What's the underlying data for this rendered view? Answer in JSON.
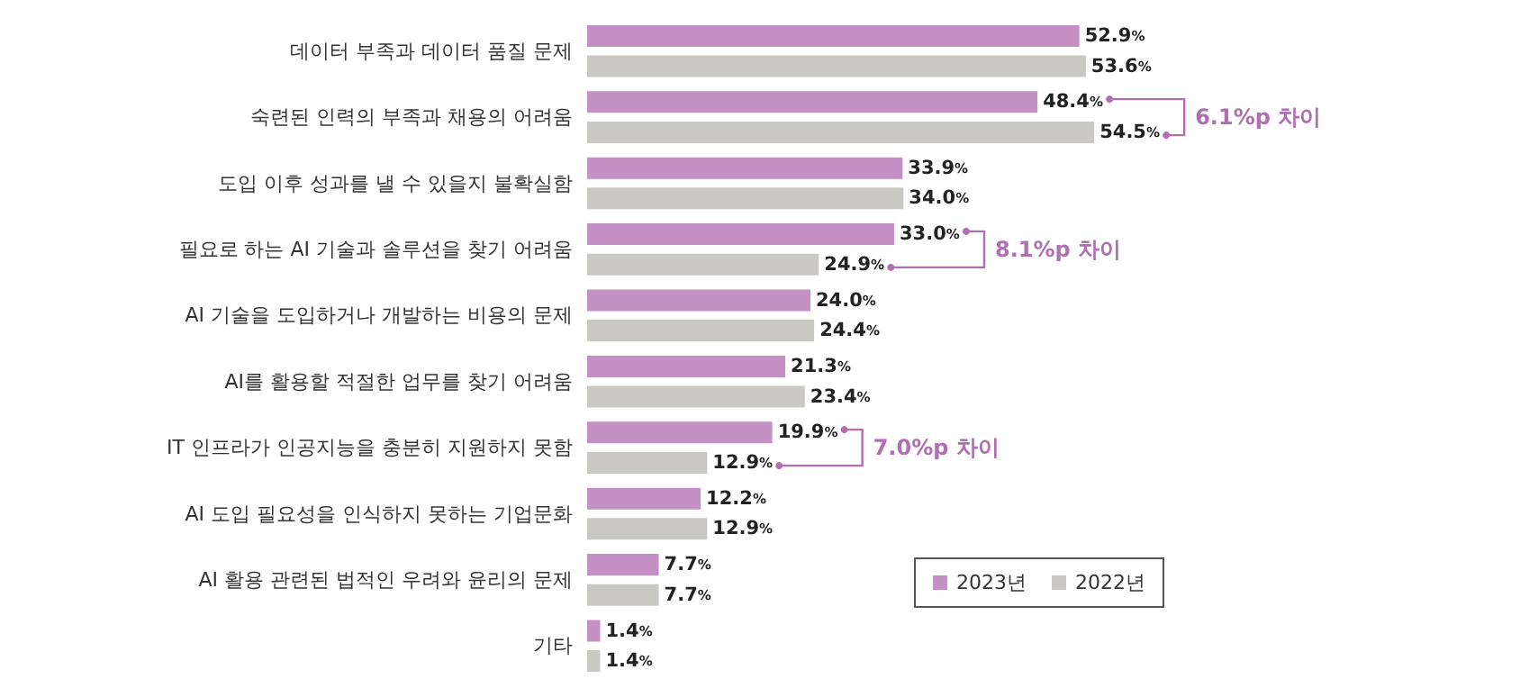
{
  "chart_data": {
    "type": "bar",
    "orientation": "horizontal",
    "categories": [
      "데이터 부족과 데이터 품질 문제",
      "숙련된 인력의 부족과 채용의 어려움",
      "도입 이후 성과를 낼 수 있을지 불확실함",
      "필요로 하는 AI 기술과 솔루션을 찾기 어려움",
      "AI 기술을 도입하거나 개발하는 비용의 문제",
      "AI를 활용할 적절한 업무를 찾기 어려움",
      "IT 인프라가 인공지능을 충분히 지원하지 못함",
      "AI 도입 필요성을 인식하지 못하는 기업문화",
      "AI 활용 관련된 법적인 우려와 윤리의 문제",
      "기타"
    ],
    "series": [
      {
        "name": "2023년",
        "color": "#c590c4",
        "values": [
          52.9,
          48.4,
          33.9,
          33.0,
          24.0,
          21.3,
          19.9,
          12.2,
          7.7,
          1.4
        ],
        "value_labels": [
          "52.9%",
          "48.4%",
          "33.9%",
          "33.0%",
          "24.0%",
          "21.3%",
          "19.9%",
          "12.2%",
          "7.7%",
          "1.4%"
        ]
      },
      {
        "name": "2022년",
        "color": "#c9c8c3",
        "values": [
          53.6,
          54.5,
          34.0,
          24.9,
          24.4,
          23.4,
          12.9,
          12.9,
          7.7,
          1.4
        ],
        "value_labels": [
          "53.6%",
          "54.5%",
          "34.0%",
          "24.9%",
          "24.4%",
          "23.4%",
          "12.9%",
          "12.9%",
          "7.7%",
          "1.4%"
        ]
      }
    ],
    "annotations": [
      "6.1%p 차이",
      "8.1%p 차이",
      "7.0%p 차이"
    ],
    "legend": "bottom right",
    "grid": false,
    "tick_labels": "y"
  }
}
